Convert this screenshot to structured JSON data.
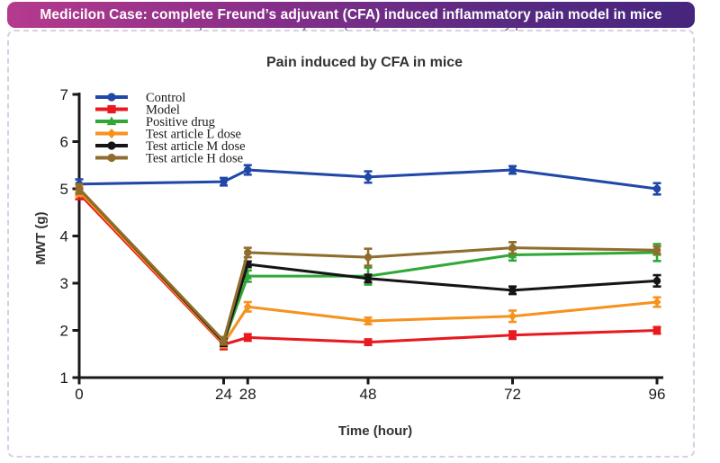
{
  "banner": {
    "text": "Medicilon Case: complete Freund’s adjuvant (CFA) induced inflammatory pain model in mice",
    "bg_left_color": "#b53a8d",
    "bg_right_color": "#46257d",
    "text_color": "#ffffff"
  },
  "card": {
    "border_color": "#d8cfe2"
  },
  "chart_data": {
    "type": "line",
    "title": "Pain induced by CFA in mice",
    "xlabel": "Time (hour)",
    "ylabel": "MWT (g)",
    "x": [
      0,
      24,
      28,
      48,
      72,
      96
    ],
    "xticks": [
      0,
      24,
      28,
      48,
      72,
      96
    ],
    "yticks": [
      1,
      2,
      3,
      4,
      5,
      6,
      7
    ],
    "xlim": [
      0,
      96
    ],
    "ylim": [
      1,
      7
    ],
    "grid": false,
    "legend_position": "top-left-inside",
    "axis_color": "#1a1a1a",
    "series": [
      {
        "name": "Control",
        "color": "#2148a8",
        "marker": "circle",
        "values": [
          5.1,
          5.15,
          5.4,
          5.25,
          5.4,
          5.0
        ],
        "err": [
          0.1,
          0.08,
          0.1,
          0.12,
          0.08,
          0.12
        ]
      },
      {
        "name": "Model",
        "color": "#e8191f",
        "marker": "square",
        "values": [
          4.9,
          1.7,
          1.85,
          1.75,
          1.9,
          2.0
        ],
        "err": [
          0.12,
          0.1,
          0.07,
          0.06,
          0.08,
          0.07
        ]
      },
      {
        "name": "Positive drug",
        "color": "#2fa836",
        "marker": "triangle",
        "values": [
          4.95,
          1.75,
          3.15,
          3.15,
          3.6,
          3.65
        ],
        "err": [
          0.1,
          0.1,
          0.12,
          0.18,
          0.12,
          0.18
        ]
      },
      {
        "name": "Test article L dose",
        "color": "#f6921e",
        "marker": "diamond",
        "values": [
          4.95,
          1.72,
          2.5,
          2.2,
          2.3,
          2.6
        ],
        "err": [
          0.1,
          0.08,
          0.1,
          0.07,
          0.12,
          0.1
        ]
      },
      {
        "name": "Test article M dose",
        "color": "#151515",
        "marker": "circle",
        "values": [
          5.0,
          1.75,
          3.4,
          3.1,
          2.85,
          3.05
        ],
        "err": [
          0.1,
          0.08,
          0.06,
          0.08,
          0.08,
          0.12
        ]
      },
      {
        "name": "Test article H dose",
        "color": "#8f6e2d",
        "marker": "circle",
        "values": [
          5.0,
          1.78,
          3.65,
          3.55,
          3.75,
          3.7
        ],
        "err": [
          0.1,
          0.08,
          0.1,
          0.18,
          0.12,
          0.08
        ]
      }
    ]
  }
}
